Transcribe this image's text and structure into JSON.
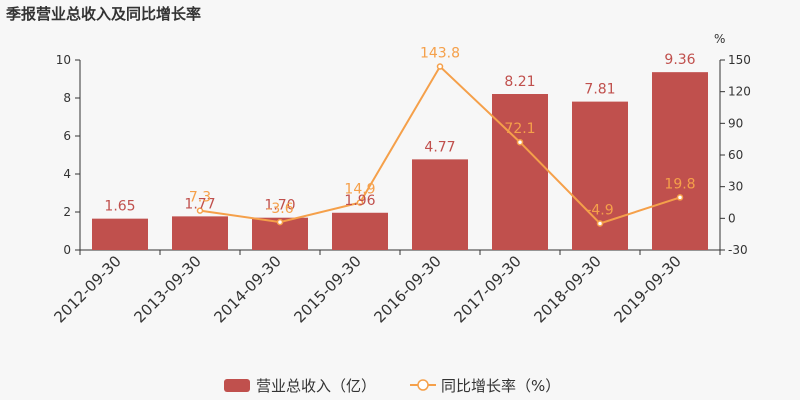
{
  "chart_data": {
    "type": "bar",
    "title": "季报营业总收入及同比增长率",
    "categories": [
      "2012-09-30",
      "2013-09-30",
      "2014-09-30",
      "2015-09-30",
      "2016-09-30",
      "2017-09-30",
      "2018-09-30",
      "2019-09-30"
    ],
    "series": [
      {
        "name": "营业总收入（亿）",
        "type": "bar",
        "axis": "left",
        "values": [
          1.65,
          1.77,
          1.7,
          1.96,
          4.77,
          8.21,
          7.81,
          9.36
        ],
        "labels": [
          "1.65",
          "1.77",
          "1.70",
          "1.96",
          "4.77",
          "8.21",
          "7.81",
          "9.36"
        ],
        "color": "#c0504d"
      },
      {
        "name": "同比增长率（%）",
        "type": "line",
        "axis": "right",
        "values": [
          null,
          7.3,
          -3.6,
          14.9,
          143.8,
          72.1,
          -4.9,
          19.8
        ],
        "labels": [
          "",
          "7.3",
          "-3.6",
          "14.9",
          "143.8",
          "72.1",
          "-4.9",
          "19.8"
        ],
        "color": "#f5a04a"
      }
    ],
    "y_left": {
      "min": 0,
      "max": 10,
      "ticks": [
        "0",
        "2",
        "4",
        "6",
        "8",
        "10"
      ]
    },
    "y_right": {
      "min": -30,
      "max": 150,
      "unit": "%",
      "ticks": [
        "-30",
        "0",
        "30",
        "60",
        "90",
        "120",
        "150"
      ]
    },
    "legend": "bottom-center",
    "grid": false
  }
}
